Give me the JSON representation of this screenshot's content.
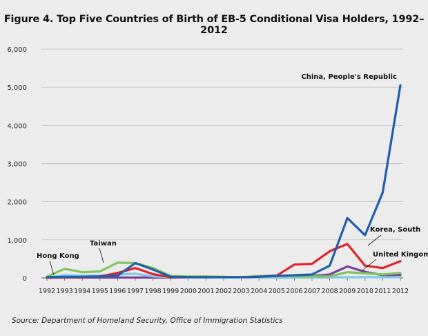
{
  "chart_data": {
    "type": "line",
    "title": "Figure 4. Top Five Countries of Birth of EB-5 Conditional Visa Holders, 1992–2012",
    "xlabel": "",
    "ylabel": "",
    "x": [
      "1992",
      "1993",
      "1994",
      "1995",
      "1996",
      "1997",
      "1998",
      "1999",
      "2000",
      "2001",
      "2002",
      "2003",
      "2004",
      "2005",
      "2006",
      "2007",
      "2008",
      "2009",
      "2010",
      "2011",
      "2012"
    ],
    "y_ticks": [
      "0",
      "1,000",
      "2,000",
      "3,000",
      "4,000",
      "5,000",
      "6,000"
    ],
    "ylim": [
      0,
      6000
    ],
    "grid": "horizontal",
    "legend": "none (direct labels on lines)",
    "series": [
      {
        "name": "China, People's Republic",
        "color": "#1f5ea8",
        "values": [
          20,
          30,
          30,
          40,
          60,
          390,
          220,
          30,
          20,
          20,
          20,
          20,
          30,
          50,
          70,
          90,
          320,
          1570,
          1120,
          2240,
          5050
        ]
      },
      {
        "name": "Korea, South",
        "color": "#e0222b",
        "values": [
          10,
          20,
          20,
          40,
          130,
          260,
          100,
          20,
          20,
          20,
          20,
          20,
          30,
          60,
          350,
          370,
          700,
          890,
          320,
          260,
          440
        ]
      },
      {
        "name": "Taiwan",
        "color": "#7ec35c",
        "values": [
          30,
          240,
          150,
          170,
          400,
          390,
          260,
          50,
          40,
          40,
          30,
          20,
          50,
          60,
          40,
          40,
          40,
          150,
          120,
          90,
          130
        ]
      },
      {
        "name": "Hong Kong",
        "color": "#7ec8e8",
        "values": [
          10,
          70,
          60,
          60,
          90,
          110,
          40,
          20,
          10,
          10,
          10,
          10,
          10,
          10,
          10,
          10,
          10,
          20,
          20,
          20,
          20
        ]
      },
      {
        "name": "United Kingom",
        "color": "#7a3fa0",
        "values": [
          5,
          10,
          10,
          10,
          10,
          10,
          10,
          10,
          10,
          10,
          10,
          10,
          10,
          20,
          30,
          50,
          90,
          300,
          160,
          70,
          80
        ]
      }
    ],
    "annotations": [
      "China, People's Republic",
      "Korea, South",
      "United Kingom",
      "Taiwan",
      "Hong Kong"
    ]
  },
  "source": "Source: Department of Homeland Security, Office of Immigration Statistics"
}
